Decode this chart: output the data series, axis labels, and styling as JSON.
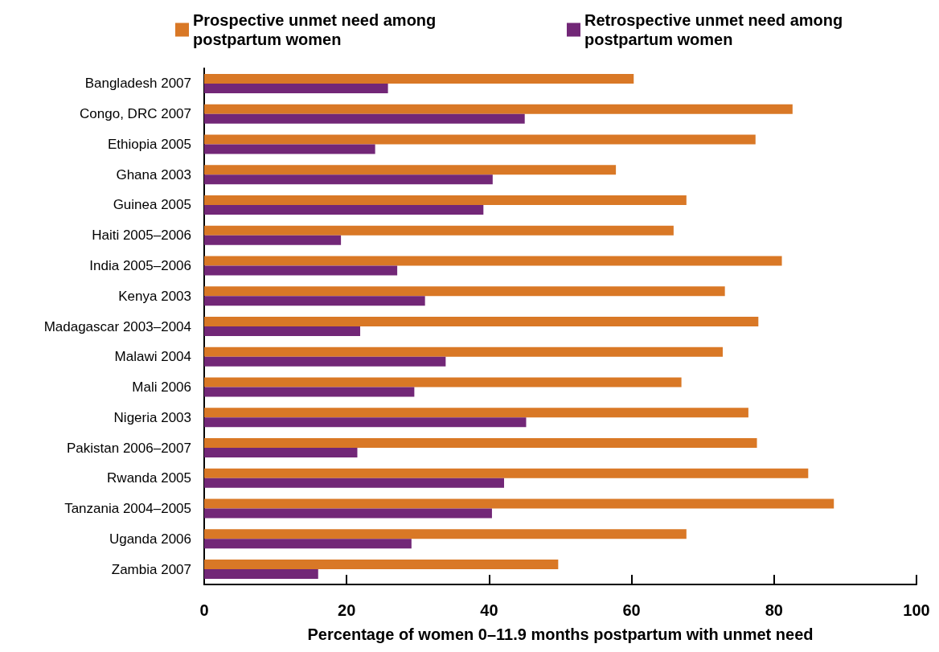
{
  "chart_data": {
    "type": "bar",
    "orientation": "horizontal",
    "xlabel": "Percentage of women 0–11.9 months postpartum with unmet need",
    "categories": [
      "Bangladesh 2007",
      "Congo, DRC 2007",
      "Ethiopia 2005",
      "Ghana 2003",
      "Guinea 2005",
      "Haiti 2005–2006",
      "India 2005–2006",
      "Kenya 2003",
      "Madagascar 2003–2004",
      "Malawi 2004",
      "Mali 2006",
      "Nigeria 2003",
      "Pakistan 2006–2007",
      "Rwanda 2005",
      "Tanzania 2004–2005",
      "Uganda 2006",
      "Zambia 2007"
    ],
    "series": [
      {
        "name": "Prospective unmet need among postpartum women",
        "color": "#d97826",
        "values": [
          60.3,
          82.6,
          77.4,
          57.8,
          67.7,
          65.9,
          81.1,
          73.1,
          77.8,
          72.8,
          67.0,
          76.4,
          77.6,
          84.8,
          88.4,
          67.7,
          49.7
        ]
      },
      {
        "name": "Retrospective unmet need among postpartum women",
        "color": "#722777",
        "values": [
          25.8,
          45.0,
          24.0,
          40.5,
          39.2,
          19.2,
          27.1,
          31.0,
          21.9,
          33.9,
          29.5,
          45.2,
          21.5,
          42.1,
          40.4,
          29.1,
          16.0
        ]
      }
    ],
    "xlim": [
      0,
      100
    ],
    "xticks": [
      0,
      20,
      40,
      60,
      80,
      100
    ],
    "grid": false,
    "legend": "top"
  }
}
